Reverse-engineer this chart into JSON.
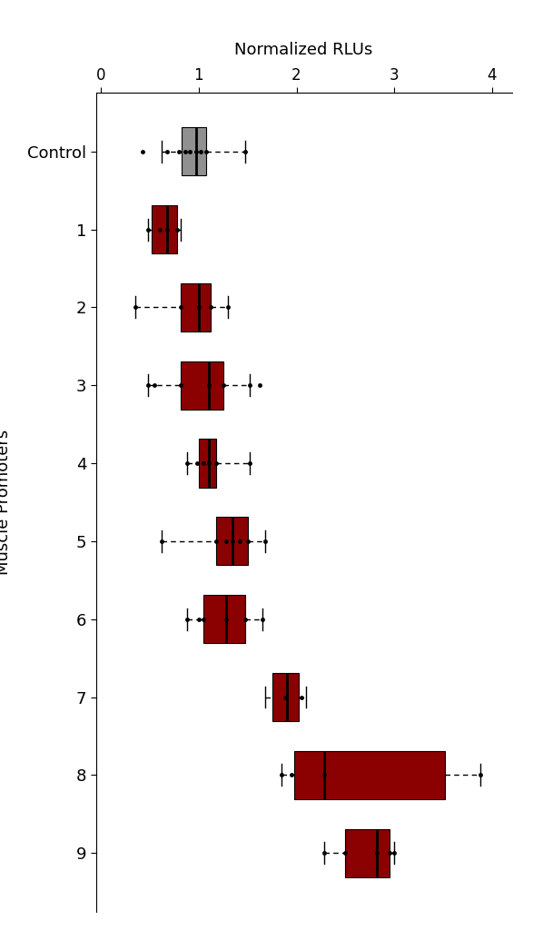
{
  "title": "Normalized RLUs",
  "ylabel": "Muscle Promoters",
  "xlim": [
    -0.05,
    4.2
  ],
  "xticks": [
    0,
    1,
    2,
    3,
    4
  ],
  "xticklabels": [
    "0",
    "1",
    "2",
    "3",
    "4"
  ],
  "boxes": [
    {
      "label": "Control",
      "q1": 0.83,
      "median": 0.97,
      "q3": 1.08,
      "whisker_low": 0.62,
      "whisker_high": 1.48,
      "points": [
        0.43,
        0.68,
        0.8,
        0.86,
        0.91,
        0.97,
        1.02,
        1.08,
        1.48
      ],
      "color": "#909090"
    },
    {
      "label": "1",
      "q1": 0.52,
      "median": 0.68,
      "q3": 0.78,
      "whisker_low": 0.48,
      "whisker_high": 0.82,
      "points": [
        0.48,
        0.6,
        0.68,
        0.78
      ],
      "color": "#8B0000"
    },
    {
      "label": "2",
      "q1": 0.82,
      "median": 1.0,
      "q3": 1.12,
      "whisker_low": 0.35,
      "whisker_high": 1.3,
      "points": [
        0.35,
        0.82,
        1.0,
        1.12,
        1.3
      ],
      "color": "#8B0000"
    },
    {
      "label": "3",
      "q1": 0.82,
      "median": 1.1,
      "q3": 1.25,
      "whisker_low": 0.48,
      "whisker_high": 1.52,
      "points": [
        0.48,
        0.55,
        0.82,
        1.1,
        1.25,
        1.52,
        1.62
      ],
      "color": "#8B0000"
    },
    {
      "label": "4",
      "q1": 1.0,
      "median": 1.1,
      "q3": 1.18,
      "whisker_low": 0.88,
      "whisker_high": 1.52,
      "points": [
        0.88,
        0.98,
        1.05,
        1.1,
        1.18,
        1.52
      ],
      "color": "#8B0000"
    },
    {
      "label": "5",
      "q1": 1.18,
      "median": 1.35,
      "q3": 1.5,
      "whisker_low": 0.62,
      "whisker_high": 1.68,
      "points": [
        0.62,
        1.18,
        1.28,
        1.35,
        1.42,
        1.5,
        1.68
      ],
      "color": "#8B0000"
    },
    {
      "label": "6",
      "q1": 1.05,
      "median": 1.28,
      "q3": 1.48,
      "whisker_low": 0.88,
      "whisker_high": 1.65,
      "points": [
        0.88,
        1.0,
        1.05,
        1.28,
        1.48,
        1.65
      ],
      "color": "#8B0000"
    },
    {
      "label": "7",
      "q1": 1.75,
      "median": 1.9,
      "q3": 2.02,
      "whisker_low": 1.68,
      "whisker_high": 2.1,
      "points": [
        1.88,
        2.05
      ],
      "color": "#8B0000"
    },
    {
      "label": "8",
      "q1": 1.98,
      "median": 2.28,
      "q3": 3.52,
      "whisker_low": 1.85,
      "whisker_high": 3.88,
      "points": [
        1.85,
        1.95,
        2.28,
        3.88
      ],
      "color": "#8B0000"
    },
    {
      "label": "9",
      "q1": 2.5,
      "median": 2.82,
      "q3": 2.95,
      "whisker_low": 2.28,
      "whisker_high": 3.0,
      "points": [
        2.28,
        2.5,
        2.82,
        2.95,
        3.0
      ],
      "color": "#8B0000"
    }
  ]
}
